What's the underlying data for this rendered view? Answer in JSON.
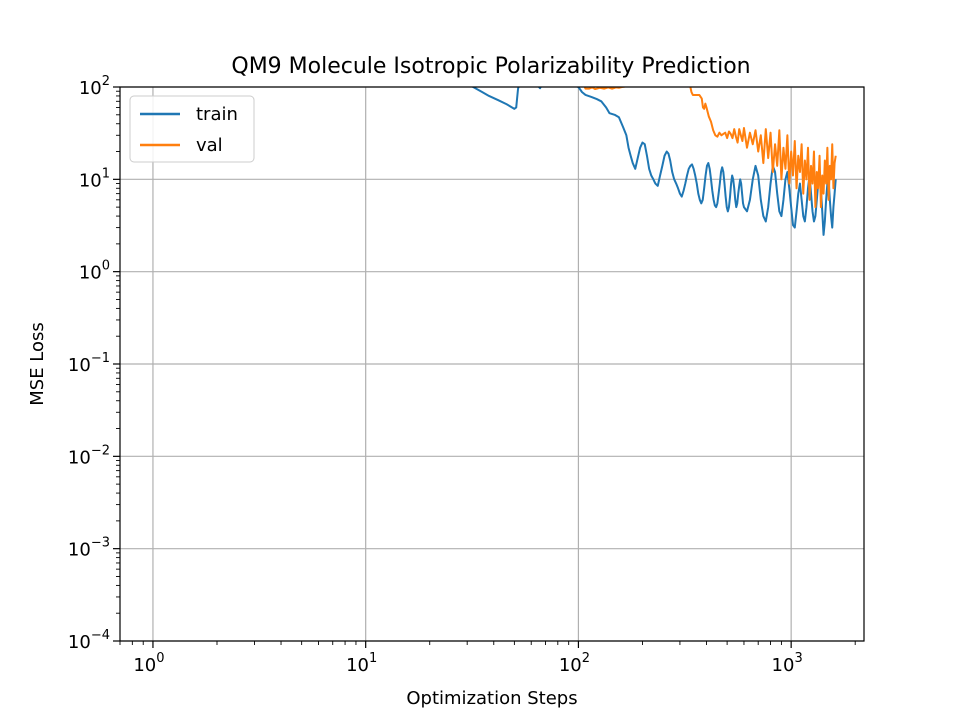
{
  "chart_data": {
    "type": "line",
    "title": "QM9 Molecule Isotropic Polarizability Prediction",
    "xlabel": "Optimization Steps",
    "ylabel": "MSE Loss",
    "xscale": "log",
    "yscale": "log",
    "xlim": [
      0.7,
      2200
    ],
    "ylim": [
      0.0001,
      100
    ],
    "x_ticks": [
      {
        "value": 1,
        "base": "10",
        "exp": "0"
      },
      {
        "value": 10,
        "base": "10",
        "exp": "1"
      },
      {
        "value": 100,
        "base": "10",
        "exp": "2"
      },
      {
        "value": 1000,
        "base": "10",
        "exp": "3"
      }
    ],
    "y_ticks": [
      {
        "value": 0.0001,
        "base": "10",
        "exp": "−4"
      },
      {
        "value": 0.001,
        "base": "10",
        "exp": "−3"
      },
      {
        "value": 0.01,
        "base": "10",
        "exp": "−2"
      },
      {
        "value": 0.1,
        "base": "10",
        "exp": "−1"
      },
      {
        "value": 1,
        "base": "10",
        "exp": "0"
      },
      {
        "value": 10,
        "base": "10",
        "exp": "1"
      },
      {
        "value": 100,
        "base": "10",
        "exp": "2"
      }
    ],
    "grid": true,
    "legend_position": "top-left",
    "series": [
      {
        "name": "train",
        "color": "#1f77b4",
        "points": [
          [
            30,
            110
          ],
          [
            32,
            100
          ],
          [
            35,
            89
          ],
          [
            38,
            80
          ],
          [
            42,
            72
          ],
          [
            46,
            65
          ],
          [
            50,
            58
          ],
          [
            51,
            60
          ],
          [
            52,
            95
          ],
          [
            53,
            115
          ],
          [
            58,
            118
          ],
          [
            63,
            110
          ],
          [
            66,
            97
          ],
          [
            68,
            110
          ],
          [
            75,
            115
          ],
          [
            85,
            112
          ],
          [
            95,
            104
          ],
          [
            100,
            100
          ],
          [
            104,
            88
          ],
          [
            108,
            82
          ],
          [
            115,
            78
          ],
          [
            122,
            74
          ],
          [
            128,
            70
          ],
          [
            135,
            60
          ],
          [
            140,
            52
          ],
          [
            148,
            50
          ],
          [
            155,
            47
          ],
          [
            162,
            37
          ],
          [
            168,
            30
          ],
          [
            172,
            22
          ],
          [
            176,
            18
          ],
          [
            180,
            15
          ],
          [
            185,
            13
          ],
          [
            190,
            17
          ],
          [
            195,
            22
          ],
          [
            200,
            25
          ],
          [
            205,
            24
          ],
          [
            210,
            18
          ],
          [
            215,
            13
          ],
          [
            220,
            11
          ],
          [
            225,
            10
          ],
          [
            230,
            9
          ],
          [
            236,
            8.5
          ],
          [
            242,
            11
          ],
          [
            248,
            14
          ],
          [
            254,
            18
          ],
          [
            260,
            20
          ],
          [
            265,
            19
          ],
          [
            270,
            16
          ],
          [
            276,
            12
          ],
          [
            282,
            10
          ],
          [
            288,
            9
          ],
          [
            294,
            8
          ],
          [
            300,
            7
          ],
          [
            306,
            6.5
          ],
          [
            312,
            7.5
          ],
          [
            318,
            9
          ],
          [
            324,
            11
          ],
          [
            330,
            13
          ],
          [
            336,
            14
          ],
          [
            342,
            14.5
          ],
          [
            348,
            13
          ],
          [
            354,
            11
          ],
          [
            360,
            9
          ],
          [
            366,
            7
          ],
          [
            372,
            6
          ],
          [
            378,
            5.5
          ],
          [
            384,
            6
          ],
          [
            390,
            8
          ],
          [
            396,
            11
          ],
          [
            402,
            14
          ],
          [
            408,
            15
          ],
          [
            414,
            13
          ],
          [
            420,
            10
          ],
          [
            426,
            7.5
          ],
          [
            432,
            6
          ],
          [
            438,
            5.2
          ],
          [
            444,
            5
          ],
          [
            450,
            5.5
          ],
          [
            456,
            7
          ],
          [
            462,
            9
          ],
          [
            468,
            12
          ],
          [
            474,
            13.5
          ],
          [
            480,
            12
          ],
          [
            486,
            9
          ],
          [
            492,
            6.5
          ],
          [
            498,
            5
          ],
          [
            504,
            4.5
          ],
          [
            510,
            5
          ],
          [
            516,
            6.5
          ],
          [
            522,
            9
          ],
          [
            528,
            11
          ],
          [
            534,
            10
          ],
          [
            540,
            8
          ],
          [
            546,
            6
          ],
          [
            552,
            5
          ],
          [
            558,
            5.5
          ],
          [
            564,
            7
          ],
          [
            570,
            8.5
          ],
          [
            576,
            10
          ],
          [
            582,
            9
          ],
          [
            588,
            7
          ],
          [
            594,
            5.5
          ],
          [
            600,
            5
          ],
          [
            620,
            4.5
          ],
          [
            640,
            6
          ],
          [
            660,
            10
          ],
          [
            680,
            14
          ],
          [
            700,
            11
          ],
          [
            720,
            6
          ],
          [
            740,
            4
          ],
          [
            760,
            3.5
          ],
          [
            780,
            5
          ],
          [
            800,
            9
          ],
          [
            820,
            14
          ],
          [
            840,
            12
          ],
          [
            860,
            7
          ],
          [
            880,
            4.5
          ],
          [
            900,
            4
          ],
          [
            920,
            6
          ],
          [
            940,
            10
          ],
          [
            960,
            12
          ],
          [
            980,
            8
          ],
          [
            1000,
            5
          ],
          [
            1020,
            3.2
          ],
          [
            1040,
            3
          ],
          [
            1060,
            4.5
          ],
          [
            1080,
            7
          ],
          [
            1100,
            9
          ],
          [
            1120,
            6
          ],
          [
            1140,
            4
          ],
          [
            1160,
            3.5
          ],
          [
            1180,
            5
          ],
          [
            1200,
            8
          ],
          [
            1220,
            11
          ],
          [
            1240,
            7
          ],
          [
            1260,
            4.5
          ],
          [
            1280,
            3.5
          ],
          [
            1300,
            4
          ],
          [
            1320,
            6
          ],
          [
            1340,
            9
          ],
          [
            1360,
            12
          ],
          [
            1380,
            8
          ],
          [
            1400,
            4.5
          ],
          [
            1420,
            2.5
          ],
          [
            1440,
            3.5
          ],
          [
            1460,
            6
          ],
          [
            1480,
            9
          ],
          [
            1500,
            10
          ],
          [
            1520,
            6
          ],
          [
            1540,
            4
          ],
          [
            1560,
            3
          ],
          [
            1580,
            5
          ],
          [
            1600,
            7
          ],
          [
            1620,
            10
          ]
        ]
      },
      {
        "name": "val",
        "color": "#ff7f0e",
        "points": [
          [
            105,
            110
          ],
          [
            108,
            96
          ],
          [
            112,
            96
          ],
          [
            116,
            99
          ],
          [
            120,
            95
          ],
          [
            126,
            98
          ],
          [
            132,
            96
          ],
          [
            138,
            99
          ],
          [
            144,
            96
          ],
          [
            150,
            99
          ],
          [
            155,
            98
          ],
          [
            160,
            100
          ],
          [
            165,
            101
          ],
          [
            170,
            104
          ],
          [
            185,
            105
          ],
          [
            200,
            104
          ],
          [
            220,
            104
          ],
          [
            240,
            104
          ],
          [
            260,
            104
          ],
          [
            280,
            104
          ],
          [
            300,
            104
          ],
          [
            320,
            103
          ],
          [
            335,
            103
          ],
          [
            340,
            88
          ],
          [
            345,
            82
          ],
          [
            350,
            82
          ],
          [
            360,
            82
          ],
          [
            370,
            82
          ],
          [
            380,
            75
          ],
          [
            385,
            60
          ],
          [
            390,
            58
          ],
          [
            395,
            66
          ],
          [
            400,
            60
          ],
          [
            410,
            48
          ],
          [
            420,
            42
          ],
          [
            430,
            34
          ],
          [
            440,
            30
          ],
          [
            450,
            29
          ],
          [
            460,
            32
          ],
          [
            470,
            30
          ],
          [
            480,
            31
          ],
          [
            490,
            32
          ],
          [
            500,
            28
          ],
          [
            510,
            33
          ],
          [
            520,
            31
          ],
          [
            530,
            28
          ],
          [
            540,
            35
          ],
          [
            550,
            29
          ],
          [
            560,
            25
          ],
          [
            570,
            35
          ],
          [
            580,
            30
          ],
          [
            590,
            26
          ],
          [
            600,
            36
          ],
          [
            620,
            22
          ],
          [
            640,
            32
          ],
          [
            660,
            24
          ],
          [
            680,
            34
          ],
          [
            700,
            20
          ],
          [
            720,
            30
          ],
          [
            740,
            15
          ],
          [
            760,
            35
          ],
          [
            780,
            17
          ],
          [
            800,
            32
          ],
          [
            820,
            12
          ],
          [
            840,
            24
          ],
          [
            860,
            14
          ],
          [
            880,
            34
          ],
          [
            900,
            10
          ],
          [
            920,
            22
          ],
          [
            940,
            13
          ],
          [
            960,
            30
          ],
          [
            980,
            9
          ],
          [
            1000,
            20
          ],
          [
            1020,
            11
          ],
          [
            1040,
            26
          ],
          [
            1060,
            8
          ],
          [
            1080,
            18
          ],
          [
            1100,
            12
          ],
          [
            1120,
            24
          ],
          [
            1140,
            7
          ],
          [
            1160,
            16
          ],
          [
            1180,
            10
          ],
          [
            1200,
            22
          ],
          [
            1220,
            6
          ],
          [
            1240,
            14
          ],
          [
            1260,
            9
          ],
          [
            1280,
            20
          ],
          [
            1300,
            5
          ],
          [
            1320,
            12
          ],
          [
            1340,
            8
          ],
          [
            1360,
            18
          ],
          [
            1380,
            5
          ],
          [
            1400,
            11
          ],
          [
            1420,
            7
          ],
          [
            1440,
            16
          ],
          [
            1460,
            9
          ],
          [
            1480,
            22
          ],
          [
            1500,
            6
          ],
          [
            1520,
            14
          ],
          [
            1540,
            10
          ],
          [
            1560,
            24
          ],
          [
            1580,
            8
          ],
          [
            1600,
            15
          ],
          [
            1620,
            18
          ]
        ]
      }
    ]
  }
}
